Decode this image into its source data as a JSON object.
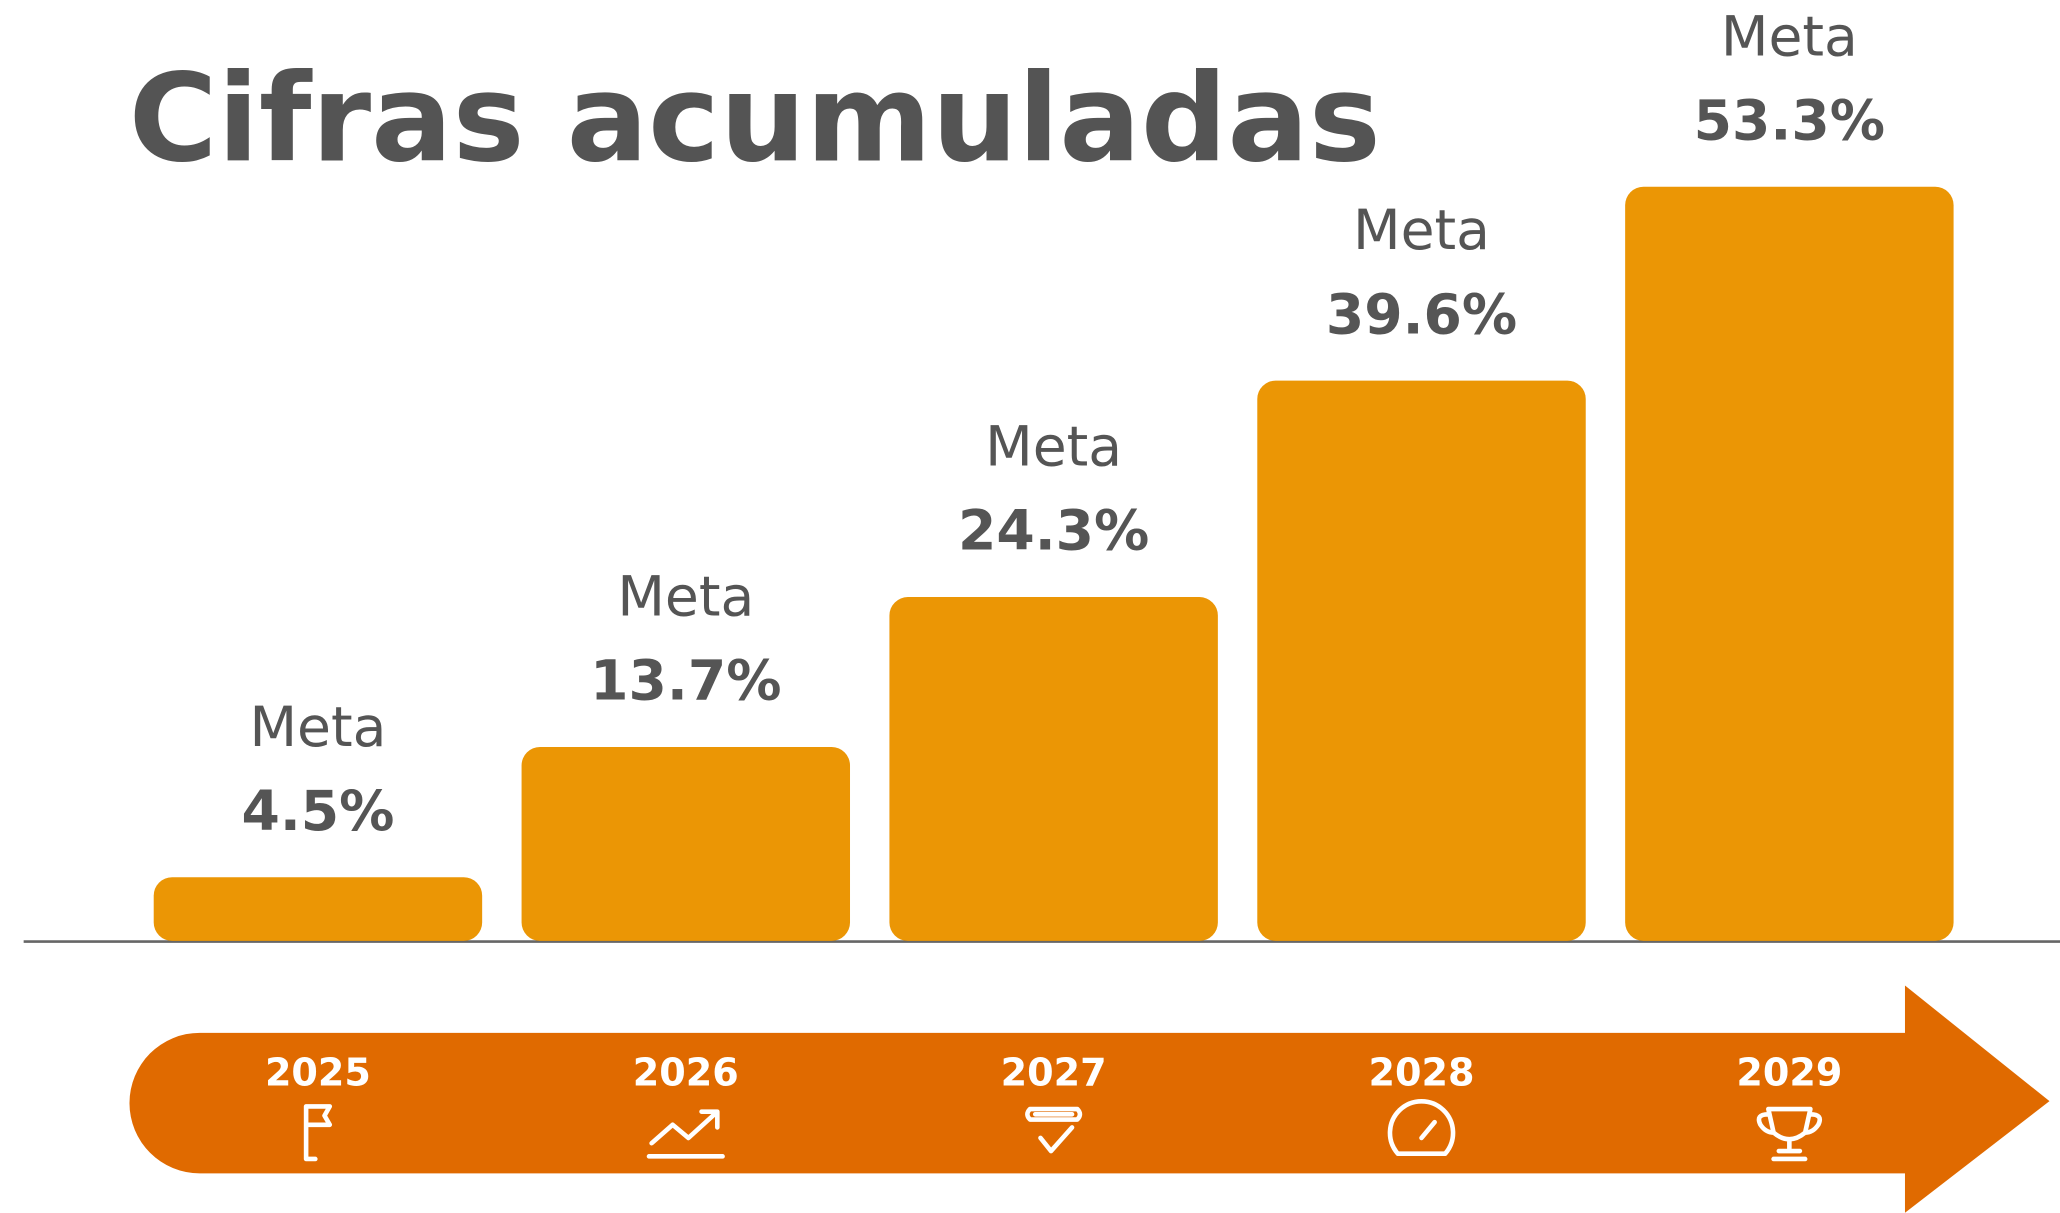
{
  "chart_data": {
    "type": "bar",
    "title": "Cifras acumuladas",
    "bar_label": "Meta",
    "categories": [
      "2025",
      "2026",
      "2027",
      "2028",
      "2029"
    ],
    "values": [
      4.5,
      13.7,
      24.3,
      39.6,
      53.3
    ],
    "value_labels": [
      "4.5%",
      "13.7%",
      "24.3%",
      "39.6%",
      "53.3%"
    ],
    "color": "#eb9605",
    "timeline_color": "#e06a00"
  }
}
